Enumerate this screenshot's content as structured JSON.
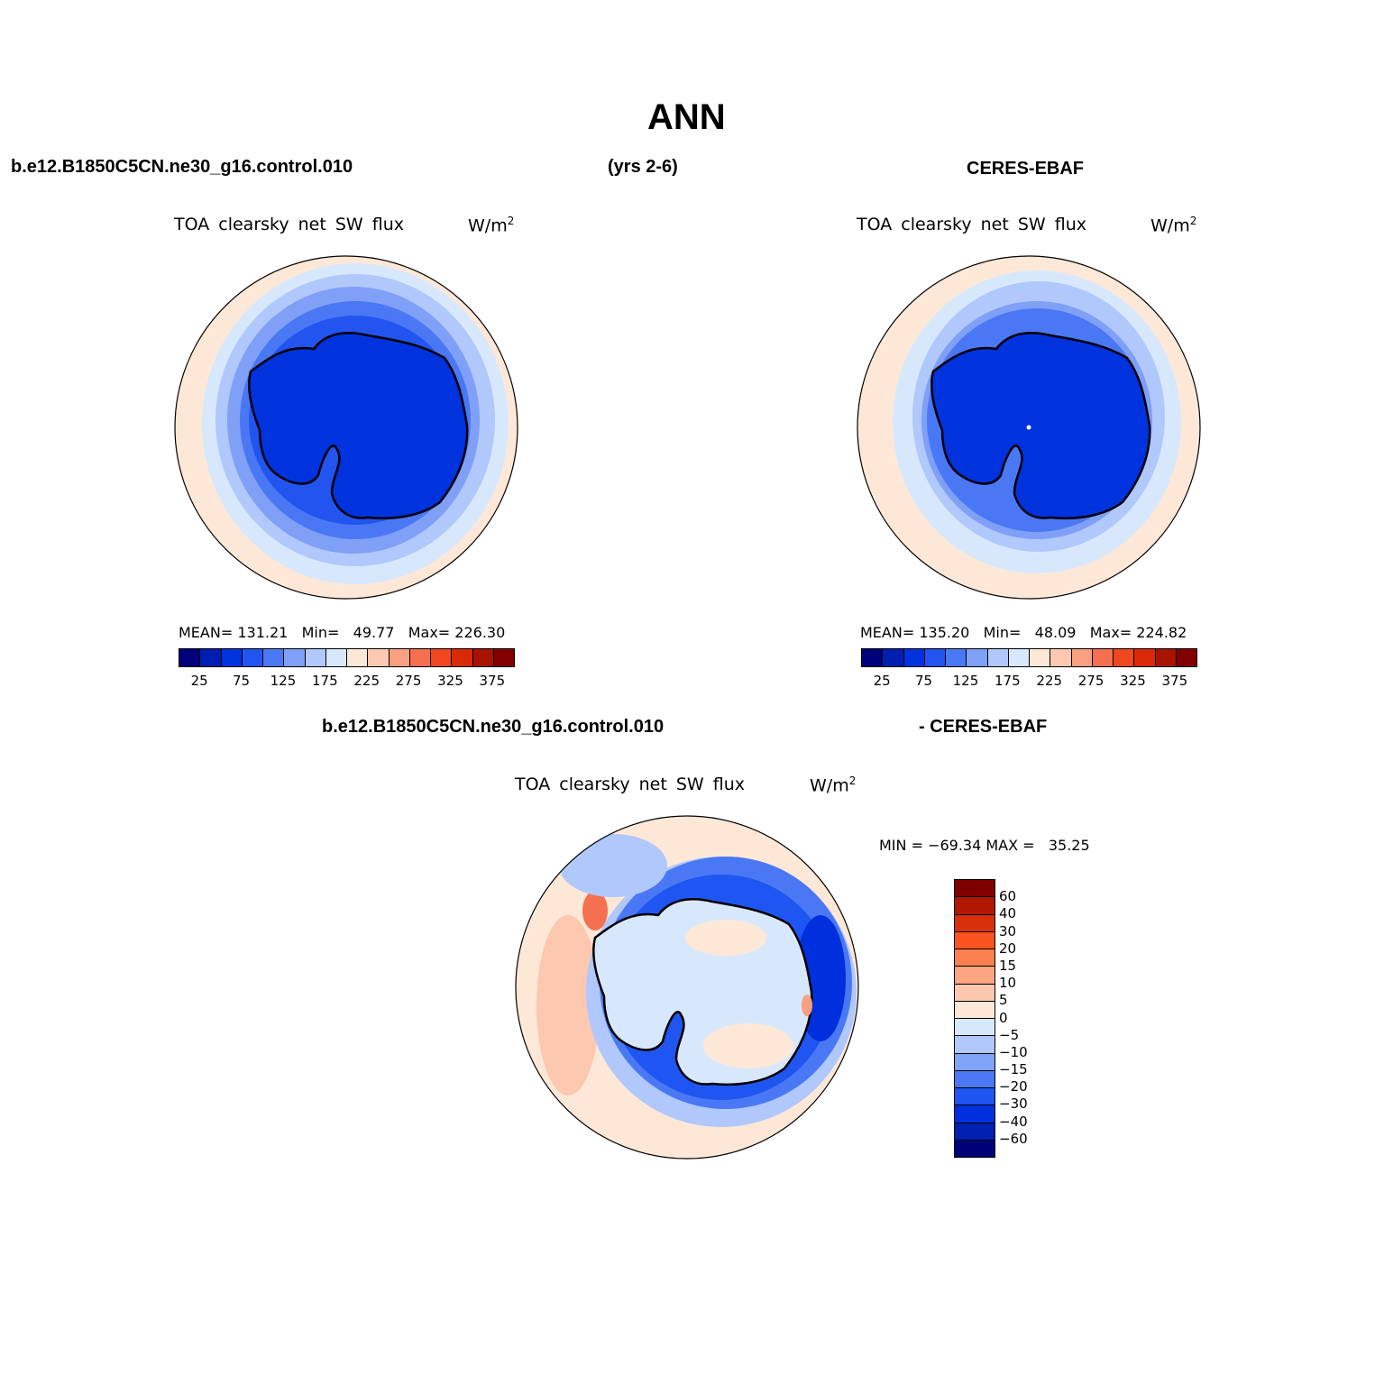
{
  "title": "ANN",
  "headers": {
    "case": "b.e12.B1850C5CN.ne30_g16.control.010",
    "years": "(yrs 2-6)",
    "obs": "CERES-EBAF",
    "diff_case": "b.e12.B1850C5CN.ne30_g16.control.010",
    "diff_obs": "- CERES-EBAF"
  },
  "panels": [
    {
      "variable": "TOA clearsky net SW flux",
      "units_base": "W/m",
      "units_exp": "2",
      "stats": {
        "mean_label": "MEAN=",
        "mean": "131.21",
        "min_label": "Min=",
        "min": "49.77",
        "max_label": "Max=",
        "max": "226.30"
      }
    },
    {
      "variable": "TOA clearsky net SW flux",
      "units_base": "W/m",
      "units_exp": "2",
      "stats": {
        "mean_label": "MEAN=",
        "mean": "135.20",
        "min_label": "Min=",
        "min": "48.09",
        "max_label": "Max=",
        "max": "224.82"
      }
    },
    {
      "variable": "TOA clearsky net SW flux",
      "units_base": "W/m",
      "units_exp": "2",
      "stats": {
        "minmax": "MIN = −69.34 MAX =   35.25"
      }
    }
  ],
  "colorbar_abs": {
    "colors": [
      "#00007a",
      "#001fb0",
      "#0033dd",
      "#2255f0",
      "#4a78f5",
      "#7fa0f6",
      "#b0c8fb",
      "#d8e8fc",
      "#fde8d8",
      "#fcc8b0",
      "#f8a080",
      "#f57050",
      "#ef4720",
      "#d82a06",
      "#a81400",
      "#800000"
    ],
    "ticks": [
      "25",
      "75",
      "125",
      "175",
      "225",
      "275",
      "325",
      "375"
    ]
  },
  "colorbar_diff": {
    "colors": [
      "#800000",
      "#b01800",
      "#d83008",
      "#f95420",
      "#fa8050",
      "#fba680",
      "#fdc8b0",
      "#fde8d8",
      "#d8e8fc",
      "#b0c8fb",
      "#80a4f8",
      "#4a78f5",
      "#1f55f0",
      "#0030dd",
      "#0020b0",
      "#00007a"
    ],
    "ticks": [
      "60",
      "40",
      "30",
      "20",
      "15",
      "10",
      "5",
      "0",
      "−5",
      "−10",
      "−15",
      "−20",
      "−30",
      "−40",
      "−60"
    ]
  }
}
